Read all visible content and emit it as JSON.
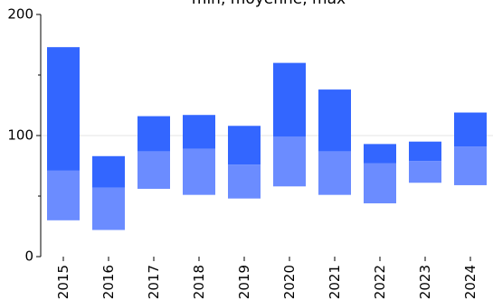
{
  "chart_data": {
    "type": "bar",
    "title": "min, moyenne, max",
    "xlabel": "",
    "ylabel": "",
    "ylim": [
      0,
      200
    ],
    "yticks": [
      0,
      100,
      200
    ],
    "grid": true,
    "categories": [
      "2015",
      "2016",
      "2017",
      "2018",
      "2019",
      "2020",
      "2021",
      "2022",
      "2023",
      "2024"
    ],
    "series": [
      {
        "role": "min",
        "values": [
          30,
          22,
          56,
          51,
          48,
          58,
          51,
          44,
          61,
          59
        ]
      },
      {
        "role": "moyenne",
        "values": [
          71,
          57,
          87,
          89,
          76,
          99,
          87,
          77,
          79,
          91
        ]
      },
      {
        "role": "max",
        "values": [
          173,
          83,
          116,
          117,
          108,
          160,
          138,
          93,
          95,
          119
        ]
      }
    ],
    "colors": {
      "lower_band": "#6b8cff",
      "upper_band": "#3366ff",
      "grid": "#e6e6e6",
      "axis": "#000000"
    }
  }
}
